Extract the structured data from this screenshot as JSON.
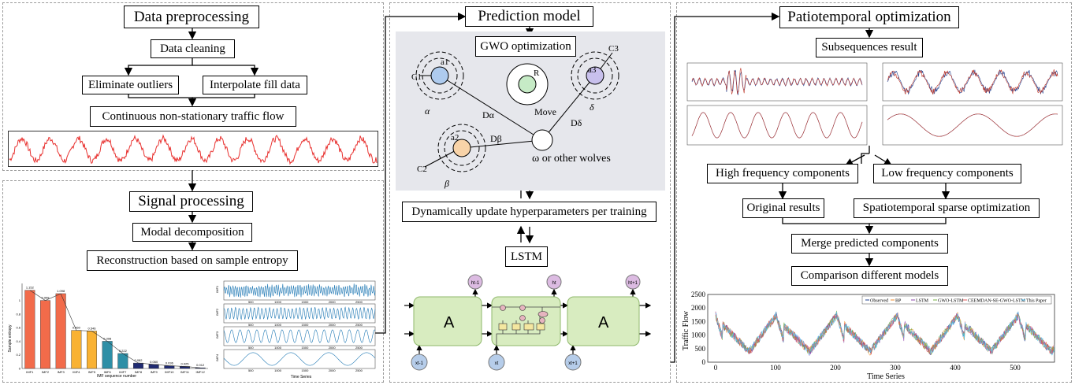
{
  "colors": {
    "panel_border": "#9a9a9a",
    "flow_line": "#e8312f",
    "gwo_bg": "#e6e7ec",
    "alpha_fill": "#aecbee",
    "beta_fill": "#f8d3a8",
    "delta_fill": "#c8c0ec",
    "r_fill": "#c6ebc6",
    "lstm_cell": "#d8ecc0",
    "lstm_cell_border": "#8fb86b",
    "h_node": "#dcbbe2",
    "x_node": "#b6cdea",
    "bars": [
      "#f26b4a",
      "#f26b4a",
      "#f26b4a",
      "#f9b233",
      "#f9b233",
      "#2e8fa6",
      "#2e8fa6",
      "#1f2a72",
      "#1f2a72",
      "#1f2a72",
      "#1f2a72",
      "#1f2a72"
    ],
    "imf_wave": "#1f78b4",
    "obs_line": "#1f3f8f",
    "pred_line": "#c0392b"
  },
  "left": {
    "preprocess_title": "Data preprocessing",
    "data_cleaning": "Data cleaning",
    "eliminate_outliers": "Eliminate outliers",
    "interpolate": "Interpolate fill data",
    "continuous_flow": "Continuous non-stationary traffic flow",
    "signal_title": "Signal processing",
    "modal_decomp": "Modal decomposition",
    "reconstruction": "Reconstruction based on sample entropy",
    "entropy_chart": {
      "values": [
        1.15,
        1.0,
        1.1,
        0.56,
        0.55,
        0.4,
        0.22,
        0.08,
        0.06,
        0.04,
        0.03,
        0.01
      ],
      "value_labels": [
        "1.152",
        "0.998",
        "1.098",
        "0.560",
        "0.546",
        "0.398",
        "0.222",
        "0.082",
        "0.060",
        "0.036",
        "0.025",
        "0.012"
      ],
      "categories": [
        "IMF1",
        "IMF2",
        "IMF3",
        "IMF4",
        "IMF5",
        "IMF6",
        "IMF7",
        "IMF8",
        "IMF9",
        "IMF10",
        "IMF11",
        "IMF12"
      ],
      "ylabel": "Sample entropy",
      "xlabel": "IMF sequence number"
    },
    "imf_panels": {
      "labels": [
        "IMF1",
        "IMF2",
        "IMF3",
        "IMF4"
      ],
      "ticks": [
        "500",
        "1000",
        "1500",
        "2000",
        "2500"
      ],
      "xlabel": "Time Series"
    }
  },
  "middle": {
    "title": "Prediction model",
    "gwo": "GWO optimization",
    "labels": {
      "a1": "a1",
      "c1": "C1",
      "a2": "a2",
      "c2": "C2",
      "a3": "a3",
      "c3": "C3",
      "r": "R",
      "move": "Move",
      "alpha": "α",
      "beta": "β",
      "delta": "δ",
      "d_alpha": "Dα",
      "d_beta": "Dβ",
      "d_delta": "Dδ",
      "omega": "ω or other wolves"
    },
    "update": "Dynamically update hyperparameters per training",
    "lstm": "LSTM",
    "lstm_cell_label": "A",
    "h_labels": [
      "ht-1",
      "ht",
      "ht+1"
    ],
    "x_labels": [
      "xt-1",
      "xt",
      "xt+1"
    ]
  },
  "right": {
    "title": "Patiotemporal optimization",
    "subsequences": "Subsequences result",
    "high_freq": "High frequency components",
    "low_freq": "Low frequency components",
    "original": "Original results",
    "sparse": "Spatiotemporal sparse optimization",
    "merge": "Merge predicted components",
    "compare": "Comparison different models",
    "comparison_chart": {
      "ylabel": "Traffic Flow",
      "xlabel": "Time Series",
      "yticks": [
        "0",
        "500",
        "1000",
        "1500",
        "2000",
        "2500"
      ],
      "xticks": [
        "0",
        "100",
        "200",
        "300",
        "400",
        "500"
      ],
      "legend": [
        "Observed",
        "BP",
        "LSTM",
        "GWO-LSTM",
        "CEEMDAN-SE-GWO-LSTM",
        "This Paper"
      ],
      "legend_colors": [
        "#1f3f8f",
        "#f28e2b",
        "#8e44ad",
        "#76b041",
        "#e15759",
        "#4fc3f7"
      ]
    }
  }
}
